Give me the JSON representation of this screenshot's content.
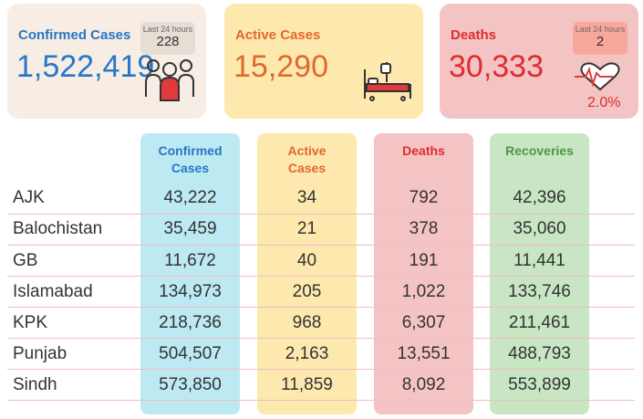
{
  "summary": {
    "confirmed": {
      "title": "Confirmed Cases",
      "value": "1,522,419",
      "badge_label": "Last 24 hours",
      "badge_value": "228"
    },
    "active": {
      "title": "Active Cases",
      "value": "15,290"
    },
    "deaths": {
      "title": "Deaths",
      "value": "30,333",
      "badge_label": "Last 24 hours",
      "badge_value": "2",
      "rate": "2.0%"
    }
  },
  "table": {
    "headers": {
      "confirmed": "Confirmed Cases",
      "active": "Active Cases",
      "deaths": "Deaths",
      "recoveries": "Recoveries"
    },
    "rows": [
      {
        "region": "AJK",
        "confirmed": "43,222",
        "active": "34",
        "deaths": "792",
        "recoveries": "42,396"
      },
      {
        "region": "Balochistan",
        "confirmed": "35,459",
        "active": "21",
        "deaths": "378",
        "recoveries": "35,060"
      },
      {
        "region": "GB",
        "confirmed": "11,672",
        "active": "40",
        "deaths": "191",
        "recoveries": "11,441"
      },
      {
        "region": "Islamabad",
        "confirmed": "134,973",
        "active": "205",
        "deaths": "1,022",
        "recoveries": "133,746"
      },
      {
        "region": "KPK",
        "confirmed": "218,736",
        "active": "968",
        "deaths": "6,307",
        "recoveries": "211,461"
      },
      {
        "region": "Punjab",
        "confirmed": "504,507",
        "active": "2,163",
        "deaths": "13,551",
        "recoveries": "488,793"
      },
      {
        "region": "Sindh",
        "confirmed": "573,850",
        "active": "11,859",
        "deaths": "8,092",
        "recoveries": "553,899"
      }
    ]
  },
  "colors": {
    "confirmed_bg": "#f7ede4",
    "active_bg": "#fde9ae",
    "deaths_bg": "#f4c4c4",
    "confirmed_col": "#bde9f3",
    "active_col": "#fde9ae",
    "deaths_col": "#f4c4c4",
    "recoveries_col": "#c8e6c4",
    "confirmed_text": "#2677c6",
    "active_text": "#e2682d",
    "deaths_text": "#e02c2c",
    "recoveries_text": "#4a9a3e"
  },
  "icons": [
    "people-group-icon",
    "hospital-bed-icon",
    "heartbeat-icon"
  ]
}
